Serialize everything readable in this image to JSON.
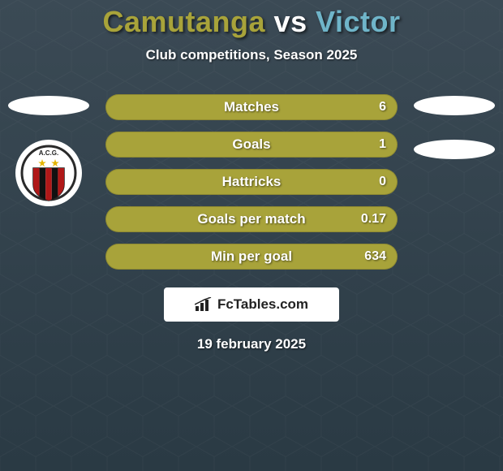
{
  "background": {
    "top_color": "#3b4a55",
    "bottom_color": "#2a3a44",
    "pattern_color": "rgba(255,255,255,0.03)"
  },
  "header": {
    "player1": "Camutanga",
    "vs": " vs ",
    "player2": "Victor",
    "color_player1": "#a8a33a",
    "color_vs": "#ffffff",
    "color_player2": "#6fb5c9",
    "subtitle": "Club competitions, Season 2025"
  },
  "stats": {
    "bar_color": "#a8a33a",
    "rows": [
      {
        "label": "Matches",
        "value": "6"
      },
      {
        "label": "Goals",
        "value": "1"
      },
      {
        "label": "Hattricks",
        "value": "0"
      },
      {
        "label": "Goals per match",
        "value": "0.17"
      },
      {
        "label": "Min per goal",
        "value": "634"
      }
    ]
  },
  "crest": {
    "ring_color": "#2a2a2a",
    "inner_bg": "#ffffff",
    "text": "A.C.G.",
    "star_color": "#e3b400",
    "stripe_red": "#b01818",
    "stripe_black": "#111111"
  },
  "branding": {
    "icon_name": "bar-chart-icon",
    "text": "FcTables.com"
  },
  "footer": {
    "date": "19 february 2025"
  }
}
